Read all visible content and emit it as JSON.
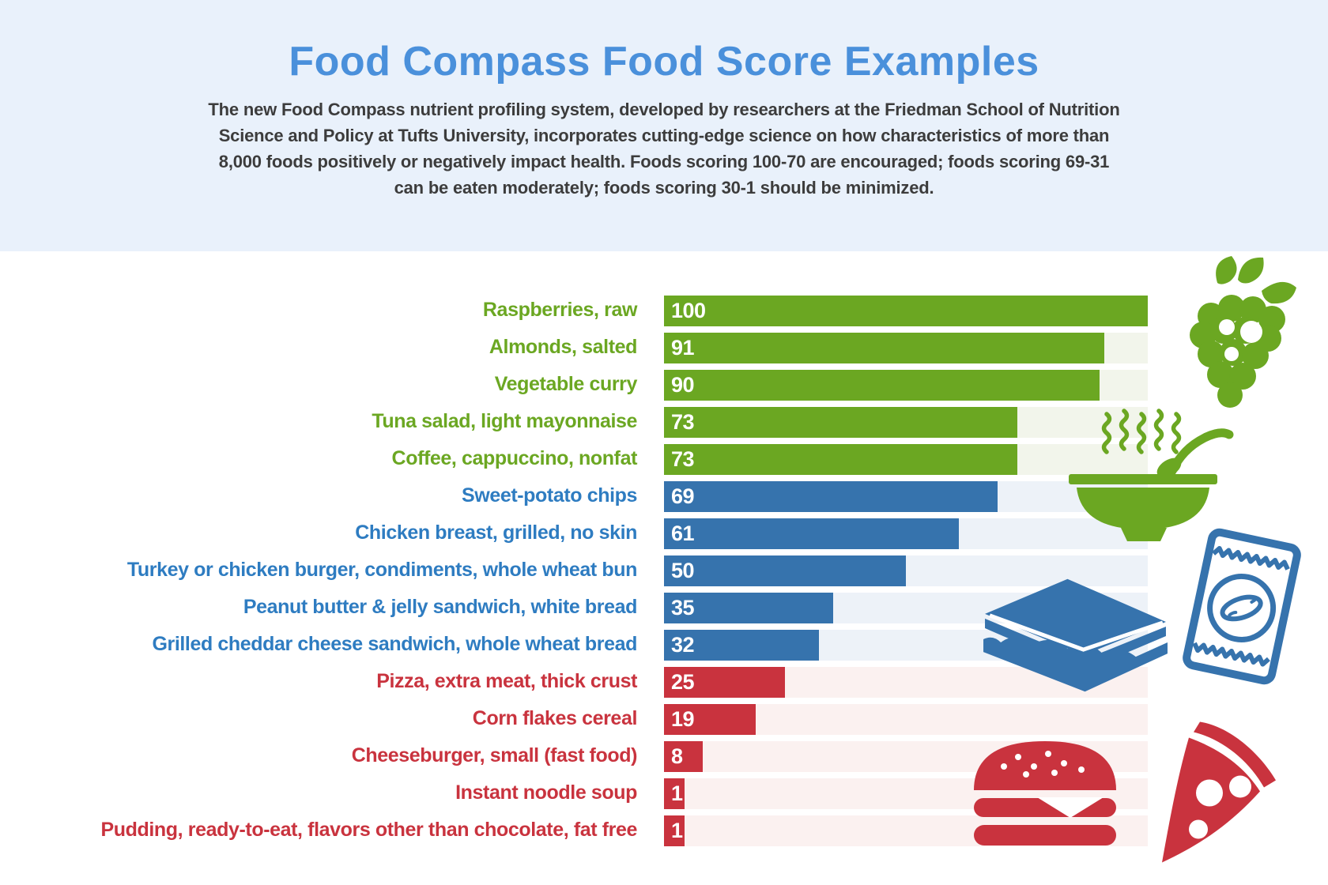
{
  "header": {
    "title": "Food Compass Food Score Examples",
    "intro_lines": [
      "The new Food Compass nutrient profiling system, developed by researchers at the Friedman School of Nutrition",
      "Science and Policy at Tufts University, incorporates cutting-edge science on how characteristics of more than",
      "8,000 foods positively or negatively impact health. Foods scoring 100-70 are encouraged; foods scoring 69-31",
      "can be eaten moderately;  foods scoring 30-1 should be minimized."
    ]
  },
  "chart_data": {
    "type": "bar",
    "orientation": "horizontal",
    "value_range": [
      0,
      100
    ],
    "grid": false,
    "legend": false,
    "tiers": {
      "encouraged": {
        "score_range": "100-70",
        "bar_color": "#6BA722",
        "label_color": "#6BA722",
        "track_color": "#F2F5EB"
      },
      "moderate": {
        "score_range": "69-31",
        "bar_color": "#3673AD",
        "label_color": "#2E7CC1",
        "track_color": "#EDF2F8"
      },
      "minimize": {
        "score_range": "30-1",
        "bar_color": "#C9333E",
        "label_color": "#C9333E",
        "track_color": "#FBF1F0"
      }
    },
    "items": [
      {
        "label": "Raspberries, raw",
        "value": 100,
        "tier": "encouraged"
      },
      {
        "label": "Almonds, salted",
        "value": 91,
        "tier": "encouraged"
      },
      {
        "label": "Vegetable curry",
        "value": 90,
        "tier": "encouraged"
      },
      {
        "label": "Tuna salad, light mayonnaise",
        "value": 73,
        "tier": "encouraged"
      },
      {
        "label": "Coffee, cappuccino, nonfat",
        "value": 73,
        "tier": "encouraged"
      },
      {
        "label": "Sweet-potato chips",
        "value": 69,
        "tier": "moderate"
      },
      {
        "label": "Chicken breast, grilled, no skin",
        "value": 61,
        "tier": "moderate"
      },
      {
        "label": "Turkey or chicken burger, condiments, whole wheat bun",
        "value": 50,
        "tier": "moderate"
      },
      {
        "label": "Peanut butter & jelly sandwich, white bread",
        "value": 35,
        "tier": "moderate"
      },
      {
        "label": "Grilled cheddar cheese sandwich, whole wheat bread",
        "value": 32,
        "tier": "moderate"
      },
      {
        "label": "Pizza, extra meat, thick crust",
        "value": 25,
        "tier": "minimize"
      },
      {
        "label": "Corn flakes cereal",
        "value": 19,
        "tier": "minimize"
      },
      {
        "label": "Cheeseburger, small (fast food)",
        "value": 8,
        "tier": "minimize"
      },
      {
        "label": "Instant noodle soup",
        "value": 1,
        "tier": "minimize"
      },
      {
        "label": "Pudding, ready-to-eat, flavors other than chocolate, fat free",
        "value": 1,
        "tier": "minimize"
      }
    ],
    "icons": [
      "raspberries-icon",
      "soup-bowl-icon",
      "snack-bag-icon",
      "sandwich-icon",
      "burger-icon",
      "pizza-slice-icon"
    ]
  },
  "colors": {
    "header_background": "#E9F1FB",
    "title": "#4A90DB",
    "intro_text": "#3C3C3C",
    "green": "#6BA722",
    "blue": "#3673AD",
    "red": "#C9333E",
    "bar_value_text": "#FFFFFF"
  }
}
